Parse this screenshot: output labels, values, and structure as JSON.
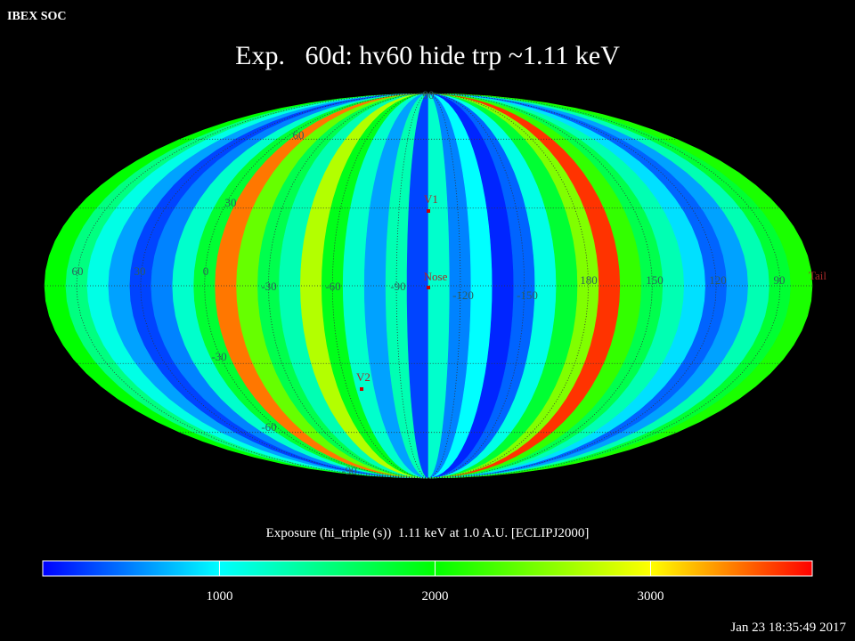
{
  "header": {
    "label": "IBEX SOC",
    "title": "Exp.   60d: hv60 hide trp ~1.11 keV"
  },
  "map": {
    "bands": [
      2000,
      1500,
      1100,
      700,
      400,
      600,
      1200,
      1800,
      3400,
      2400,
      1700,
      1300,
      2700,
      1900,
      1200,
      700,
      1300,
      400,
      1200,
      600,
      1000,
      300,
      500,
      1100,
      1800,
      2500,
      3600,
      2200,
      1700,
      1300,
      900,
      500,
      700,
      1300,
      1800,
      2100
    ],
    "latitude_labels": [
      "90",
      "60",
      "30",
      "-30",
      "-60",
      "-90"
    ],
    "longitude_labels": [
      "60",
      "30",
      "0",
      "-30",
      "-60",
      "-90",
      "-120",
      "-150",
      "180",
      "150",
      "120",
      "90"
    ],
    "markers": [
      "V1",
      "Nose",
      "V2",
      "Tail"
    ]
  },
  "colorbar": {
    "title": "Exposure (hi_triple (s))  1.11 keV at 1.0 A.U. [ECLIPJ2000]",
    "range": [
      180,
      3750
    ],
    "ticks": [
      1000,
      2000,
      3000
    ],
    "stops": [
      [
        180,
        "#0000ff"
      ],
      [
        1000,
        "#00ffff"
      ],
      [
        2000,
        "#00ff00"
      ],
      [
        3000,
        "#ffff00"
      ],
      [
        3750,
        "#ff0000"
      ]
    ]
  },
  "footer": {
    "timestamp": "Jan 23 18:35:49 2017"
  }
}
